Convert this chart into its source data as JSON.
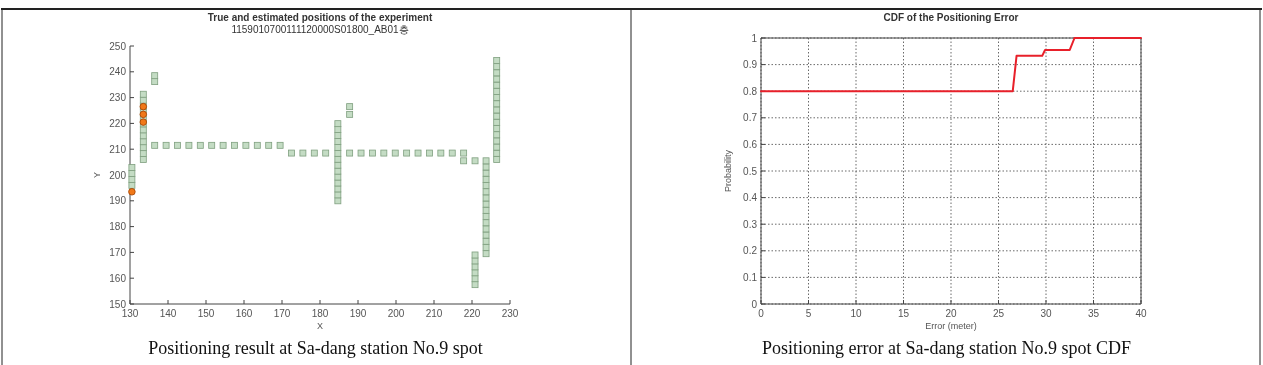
{
  "chart_data": [
    {
      "type": "scatter",
      "title": "True and estimated positions of the experiment",
      "subtitle": "1159010700111120000S01800_AB01층",
      "xlabel": "X",
      "ylabel": "Y",
      "xlim": [
        130,
        230
      ],
      "xticks": [
        130,
        140,
        150,
        160,
        170,
        180,
        190,
        200,
        210,
        220,
        230
      ],
      "ylim": [
        150,
        250
      ],
      "yticks": [
        150,
        160,
        170,
        180,
        190,
        200,
        210,
        220,
        230,
        240,
        250
      ],
      "grid": false,
      "series": [
        {
          "color": "#c4dcc4",
          "marker": "square",
          "x": [
            130.5,
            130.5,
            130.5,
            130.5,
            133.5,
            133.5,
            133.5,
            133.5,
            133.5,
            133.5,
            133.5,
            133.5,
            133.5,
            133.5,
            133.5,
            133.5,
            136.5,
            136.5,
            136.5,
            139.5,
            142.5,
            145.5,
            148.5,
            151.5,
            154.5,
            157.5,
            160.5,
            163.5,
            166.5,
            169.5,
            172.5,
            175.5,
            178.5,
            181.5,
            184.7,
            184.7,
            184.7,
            184.7,
            184.7,
            184.7,
            184.7,
            184.7,
            184.7,
            184.7,
            184.7,
            184.7,
            184.7,
            184.7,
            187.8,
            187.8,
            187.8,
            190.8,
            193.8,
            196.8,
            199.8,
            202.8,
            205.8,
            208.8,
            211.8,
            214.8,
            217.8,
            217.8,
            220.8,
            220.8,
            220.8,
            220.8,
            220.8,
            220.8,
            220.8,
            223.7,
            223.7,
            223.7,
            223.7,
            223.7,
            223.7,
            223.7,
            223.7,
            223.7,
            223.7,
            223.7,
            223.7,
            223.7,
            223.7,
            223.7,
            223.7,
            226.5,
            226.5,
            226.5,
            226.5,
            226.5,
            226.5,
            226.5,
            226.5,
            226.5,
            226.5,
            226.5,
            226.5,
            226.5,
            226.5,
            226.5,
            226.5,
            226.5
          ],
          "values": [
            196,
            198.3,
            200.6,
            202.9,
            206,
            208.3,
            210.6,
            212.9,
            215.2,
            217.5,
            219.8,
            222.1,
            224.4,
            226.7,
            229,
            231.3,
            236.2,
            238.5,
            211.5,
            211.5,
            211.5,
            211.5,
            211.5,
            211.5,
            211.5,
            211.5,
            211.5,
            211.5,
            211.5,
            211.5,
            208.5,
            208.5,
            208.5,
            208.5,
            190,
            192.3,
            194.6,
            196.9,
            199.2,
            201.5,
            203.8,
            206.1,
            208.4,
            210.7,
            213,
            215.3,
            217.6,
            219.9,
            223.5,
            226.5,
            208.5,
            208.5,
            208.5,
            208.5,
            208.5,
            208.5,
            208.5,
            208.5,
            208.5,
            208.5,
            208.5,
            205.5,
            205.5,
            157.5,
            159.8,
            162.1,
            164.4,
            166.7,
            169,
            169.5,
            171.9,
            174.3,
            176.7,
            179.1,
            181.5,
            183.9,
            186.3,
            188.7,
            191.1,
            193.5,
            195.9,
            198.3,
            200.7,
            203.1,
            205.5,
            206,
            208.4,
            210.8,
            213.2,
            215.6,
            218,
            220.4,
            222.8,
            225.2,
            227.6,
            230,
            232.4,
            234.8,
            237.2,
            239.6,
            242,
            244.4
          ]
        },
        {
          "color": "#f07818",
          "marker": "circle",
          "x": [
            130.5,
            133.5,
            133.5,
            133.5
          ],
          "values": [
            193.5,
            220.5,
            223.5,
            226.5
          ]
        }
      ],
      "annotations": [
        "Positioning result at Sa-dang station No.9 spot"
      ]
    },
    {
      "type": "line",
      "title": "CDF of the Positioning Error",
      "xlabel": "Error (meter)",
      "ylabel": "Probability",
      "xlim": [
        0,
        40
      ],
      "xticks": [
        0,
        5,
        10,
        15,
        20,
        25,
        30,
        35,
        40
      ],
      "ylim": [
        0,
        1
      ],
      "yticks": [
        0,
        0.1,
        0.2,
        0.3,
        0.4,
        0.5,
        0.6,
        0.7,
        0.8,
        0.9,
        1
      ],
      "grid": true,
      "series": [
        {
          "color": "#e8202a",
          "x": [
            0,
            26.5,
            26.9,
            29.6,
            29.9,
            32.5,
            33,
            40
          ],
          "values": [
            0.8,
            0.8,
            0.933,
            0.933,
            0.955,
            0.955,
            1,
            1
          ]
        }
      ],
      "annotations": [
        "Positioning error at Sa-dang station No.9 spot CDF"
      ]
    }
  ]
}
